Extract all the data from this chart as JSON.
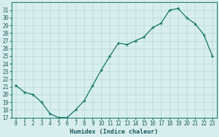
{
  "x": [
    0,
    1,
    2,
    3,
    4,
    5,
    6,
    7,
    8,
    9,
    10,
    11,
    12,
    13,
    14,
    15,
    16,
    17,
    18,
    19,
    20,
    21,
    22,
    23
  ],
  "y": [
    21.2,
    20.3,
    20.0,
    19.0,
    17.5,
    17.0,
    17.0,
    18.0,
    19.2,
    21.2,
    23.2,
    25.0,
    26.7,
    26.5,
    27.0,
    27.5,
    28.7,
    29.3,
    31.0,
    31.2,
    30.0,
    29.2,
    27.8,
    25.0
  ],
  "xlabel": "Humidex (Indice chaleur)",
  "line_color": "#1a7a6a",
  "bg_color": "#d8eeee",
  "grid_color": "#b8d8d8",
  "ylim": [
    17,
    32
  ],
  "xlim_min": -0.5,
  "xlim_max": 23.5,
  "yticks": [
    17,
    18,
    19,
    20,
    21,
    22,
    23,
    24,
    25,
    26,
    27,
    28,
    29,
    30,
    31
  ],
  "xticks": [
    0,
    1,
    2,
    3,
    4,
    5,
    6,
    7,
    8,
    9,
    10,
    11,
    12,
    13,
    14,
    15,
    16,
    17,
    18,
    19,
    20,
    21,
    22,
    23
  ],
  "tick_fontsize": 5.5,
  "xlabel_fontsize": 6.5,
  "spine_color": "#1a7a6a"
}
